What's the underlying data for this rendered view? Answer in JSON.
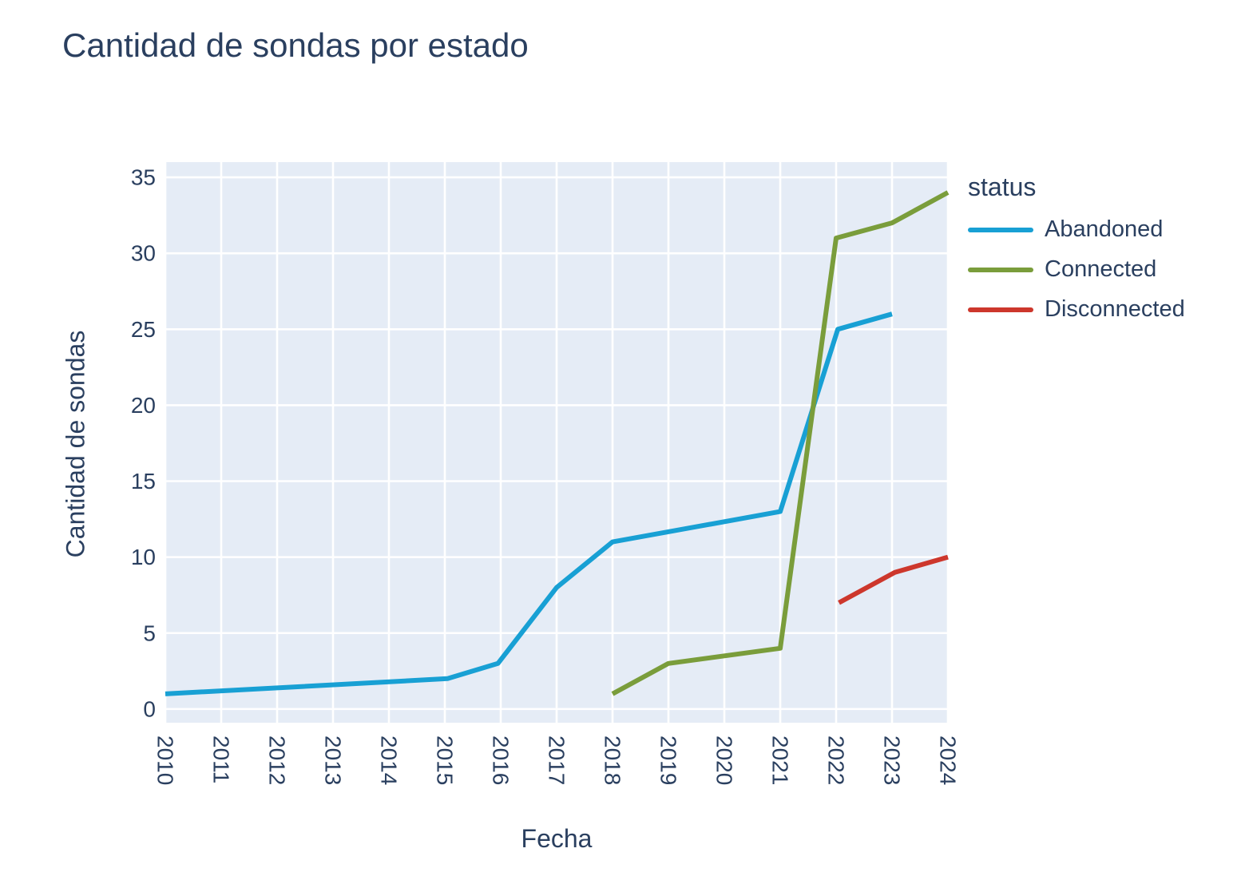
{
  "chart_data": {
    "type": "line",
    "title": "Cantidad de sondas por estado",
    "xlabel": "Fecha",
    "ylabel": "Cantidad de sondas",
    "legend_title": "status",
    "legend_position": "right",
    "grid": true,
    "plot_bg_color": "#e5ecf6",
    "grid_color": "#ffffff",
    "text_color": "#2a3f5f",
    "line_width": 6,
    "x_range": [
      2010,
      2024
    ],
    "y_range": [
      -0.9,
      36
    ],
    "x_ticks": [
      2010,
      2011,
      2012,
      2013,
      2014,
      2015,
      2016,
      2017,
      2018,
      2019,
      2020,
      2021,
      2022,
      2023,
      2024
    ],
    "x_tick_labels": [
      "2010",
      "2011",
      "2012",
      "2013",
      "2014",
      "2015",
      "2016",
      "2017",
      "2018",
      "2019",
      "2020",
      "2021",
      "2022",
      "2023",
      "2024"
    ],
    "y_ticks": [
      0,
      5,
      10,
      15,
      20,
      25,
      30,
      35
    ],
    "y_tick_labels": [
      "0",
      "5",
      "10",
      "15",
      "20",
      "25",
      "30",
      "35"
    ],
    "series": [
      {
        "name": "Abandoned",
        "color": "#18a0d4",
        "points": [
          [
            2010.0,
            1
          ],
          [
            2015.05,
            2
          ],
          [
            2015.95,
            3
          ],
          [
            2017.0,
            8
          ],
          [
            2018.0,
            11
          ],
          [
            2019.5,
            12
          ],
          [
            2021.0,
            13
          ],
          [
            2022.03,
            25
          ],
          [
            2023.0,
            26
          ]
        ]
      },
      {
        "name": "Connected",
        "color": "#7a9d3b",
        "points": [
          [
            2018.0,
            1
          ],
          [
            2019.0,
            3
          ],
          [
            2021.0,
            4
          ],
          [
            2022.0,
            31
          ],
          [
            2023.0,
            32
          ],
          [
            2024.0,
            34
          ]
        ]
      },
      {
        "name": "Disconnected",
        "color": "#cd372c",
        "points": [
          [
            2022.05,
            7
          ],
          [
            2023.05,
            9
          ],
          [
            2024.0,
            10
          ]
        ]
      }
    ]
  }
}
